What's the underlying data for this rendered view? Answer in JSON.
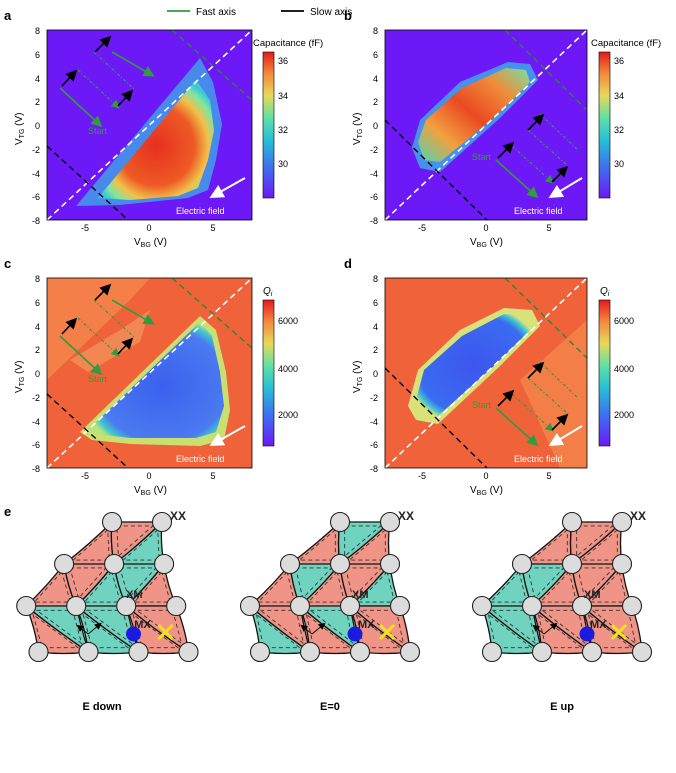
{
  "legend": {
    "fast_label": "Fast axis",
    "slow_label": "Slow axis",
    "fast_color": "#2e9e3a",
    "slow_color": "#000000"
  },
  "panels": [
    {
      "id": "a",
      "letter": "a",
      "xlabel_main": "V",
      "xlabel_sub": "BG",
      "xlabel_unit": " (V)",
      "ylabel_main": "V",
      "ylabel_sub": "TG",
      "ylabel_unit": " (V)",
      "cbar_title": "Capacitance (fF)",
      "cbar_ticks": [
        "36",
        "34",
        "32",
        "30"
      ],
      "start_label": "Start",
      "field_label": "Electric field"
    },
    {
      "id": "b",
      "letter": "b",
      "xlabel_main": "V",
      "xlabel_sub": "BG",
      "xlabel_unit": " (V)",
      "ylabel_main": "V",
      "ylabel_sub": "TG",
      "ylabel_unit": " (V)",
      "cbar_title": "Capacitance (fF)",
      "cbar_ticks": [
        "36",
        "34",
        "32",
        "30"
      ],
      "start_label": "Start",
      "field_label": "Electric field"
    },
    {
      "id": "c",
      "letter": "c",
      "xlabel_main": "V",
      "xlabel_sub": "BG",
      "xlabel_unit": " (V)",
      "ylabel_main": "V",
      "ylabel_sub": "TG",
      "ylabel_unit": " (V)",
      "cbar_title_main": "Q",
      "cbar_title_sub": "i",
      "cbar_ticks": [
        "6000",
        "4000",
        "2000"
      ],
      "start_label": "Start",
      "field_label": "Electric field"
    },
    {
      "id": "d",
      "letter": "d",
      "xlabel_main": "V",
      "xlabel_sub": "BG",
      "xlabel_unit": " (V)",
      "ylabel_main": "V",
      "ylabel_sub": "TG",
      "ylabel_unit": " (V)",
      "cbar_title_main": "Q",
      "cbar_title_sub": "i",
      "cbar_ticks": [
        "6000",
        "4000",
        "2000"
      ],
      "start_label": "Start",
      "field_label": "Electric field"
    }
  ],
  "axis": {
    "xticks": [
      "-5",
      "0",
      "5"
    ],
    "yticks": [
      "8",
      "6",
      "4",
      "2",
      "0",
      "-2",
      "-4",
      "-6",
      "-8"
    ],
    "range": [
      -8,
      8
    ]
  },
  "panel_e": {
    "letter": "e",
    "lattices": [
      {
        "caption": "E down",
        "labels": {
          "xx": "XX",
          "xm": "XM",
          "mx": "MX"
        }
      },
      {
        "caption": "E=0",
        "labels": {
          "xx": "XX",
          "xm": "XM",
          "mx": "MX"
        }
      },
      {
        "caption": "E up",
        "labels": {
          "xx": "XX",
          "xm": "XM",
          "mx": "MX"
        }
      }
    ]
  },
  "colors": {
    "pink": "#ef9487",
    "teal": "#6fd3bf",
    "node": "#dcdcdc",
    "marker_dot": "#1a1ae0",
    "marker_x": "#f2e21a",
    "grid_label": "#222222"
  }
}
